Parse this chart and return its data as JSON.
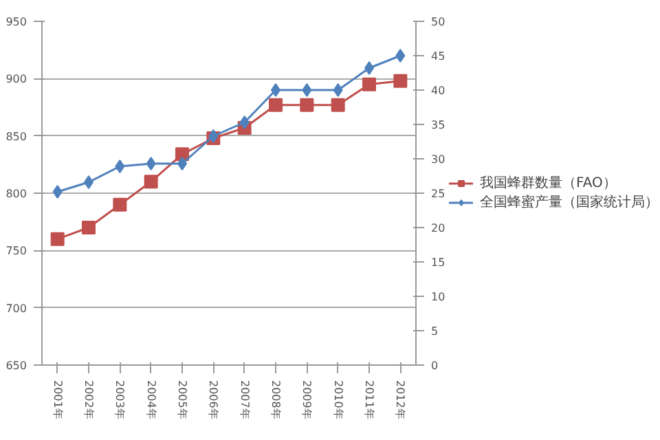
{
  "chart_data": {
    "type": "line",
    "categories": [
      "2001年",
      "2002年",
      "2003年",
      "2004年",
      "2005年",
      "2006年",
      "2007年",
      "2008年",
      "2009年",
      "2010年",
      "2011年",
      "2012年"
    ],
    "series": [
      {
        "name": "我国蜂群数量（FAO）",
        "color": "#c0504d",
        "marker": "square",
        "values": [
          760,
          770,
          790,
          810,
          834,
          848,
          857,
          877,
          877,
          877,
          895,
          898
        ]
      },
      {
        "name": "全国蜂蜜产量（国家统计局）",
        "color": "#4f81bd",
        "marker": "diamond",
        "axis": "y2",
        "values": [
          25.2,
          26.6,
          28.9,
          29.3,
          29.3,
          33.3,
          35.3,
          40,
          40,
          40,
          43.2,
          45
        ]
      }
    ],
    "ylim": [
      650,
      950
    ],
    "yticks": [
      650,
      700,
      750,
      800,
      850,
      900,
      950
    ],
    "y2lim": [
      0,
      50
    ],
    "y2ticks": [
      0,
      5,
      10,
      15,
      20,
      25,
      30,
      35,
      40,
      45,
      50
    ],
    "grid": "y",
    "legend": "right",
    "line_style": "solid"
  }
}
